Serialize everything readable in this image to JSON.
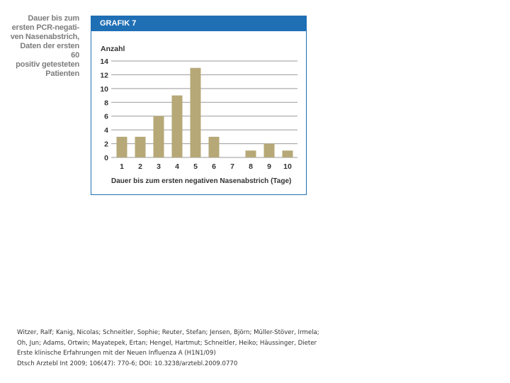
{
  "side_caption": "Dauer bis zum\nersten PCR-negati-\nven Nasenabstrich,\nDaten der ersten 60\npositiv getesteten\nPatienten",
  "figure": {
    "label": "GRAFIK 7"
  },
  "colors": {
    "header": "#1f6fb5",
    "bar": "#b6a877",
    "gridline": "#9a9a9a",
    "text": "#333333"
  },
  "chart_data": {
    "type": "bar",
    "categories": [
      "1",
      "2",
      "3",
      "4",
      "5",
      "6",
      "7",
      "8",
      "9",
      "10"
    ],
    "values": [
      3,
      3,
      6,
      9,
      13,
      3,
      0,
      1,
      2,
      1
    ],
    "ylabel": "Anzahl",
    "xlabel": "Dauer bis zum ersten negativen Nasenabstrich (Tage)",
    "yticks": [
      0,
      2,
      4,
      6,
      8,
      10,
      12,
      14
    ],
    "ylim": [
      0,
      14
    ],
    "grid": true
  },
  "citation": {
    "authors_line1": "Witzer, Ralf; Kanig, Nicolas; Schneitler, Sophie; Reuter, Stefan; Jensen, Björn; Müller-Stöver, Irmela;",
    "authors_line2": "Oh, Jun; Adams, Ortwin; Mayatepek, Ertan; Hengel, Hartmut; Schneitler, Heiko; Häussinger, Dieter",
    "title": "Erste klinische Erfahrungen mit der Neuen Influenza A (H1N1/09)",
    "source": "Dtsch Arztebl Int 2009; 106(47): 770-6; DOI: 10.3238/arztebl.2009.0770"
  }
}
